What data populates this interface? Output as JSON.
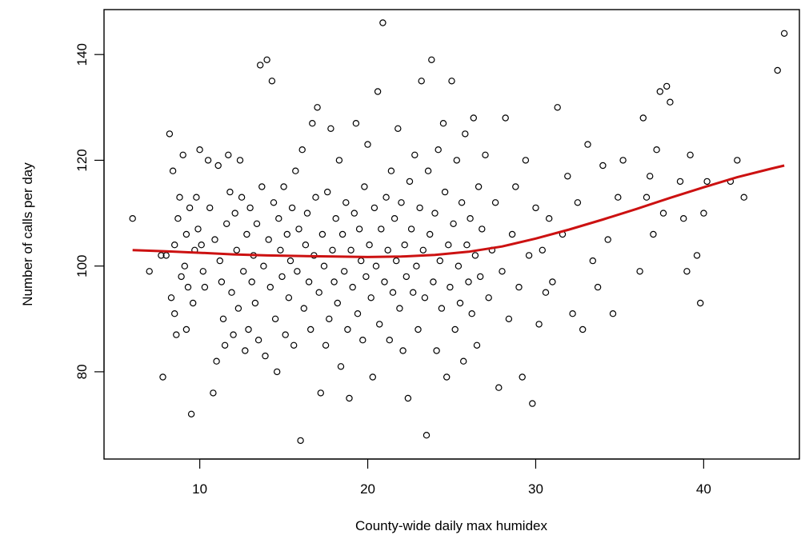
{
  "chart_data": {
    "type": "scatter",
    "title": "",
    "xlabel": "County-wide daily max humidex",
    "ylabel": "Number of calls per day",
    "xlim": [
      4.3,
      45.7
    ],
    "ylim": [
      63.5,
      148.5
    ],
    "xticks": [
      10,
      20,
      30,
      40
    ],
    "yticks": [
      80,
      100,
      120,
      140
    ],
    "xtick_labels": [
      "10",
      "20",
      "30",
      "40"
    ],
    "ytick_labels": [
      "80",
      "100",
      "120",
      "140"
    ],
    "grid": false,
    "legend": "none",
    "point_color": "#000000",
    "smooth_color": "#cc1111",
    "smooth_curve": [
      [
        6.0,
        103.0
      ],
      [
        8.0,
        102.8
      ],
      [
        10.0,
        102.5
      ],
      [
        12.0,
        102.2
      ],
      [
        14.0,
        102.0
      ],
      [
        16.0,
        101.9
      ],
      [
        18.0,
        101.8
      ],
      [
        20.0,
        101.7
      ],
      [
        22.0,
        101.8
      ],
      [
        24.0,
        102.1
      ],
      [
        26.0,
        102.7
      ],
      [
        28.0,
        103.7
      ],
      [
        30.0,
        105.2
      ],
      [
        32.0,
        106.9
      ],
      [
        34.0,
        108.8
      ],
      [
        36.0,
        110.8
      ],
      [
        38.0,
        112.9
      ],
      [
        40.0,
        114.9
      ],
      [
        42.0,
        116.8
      ],
      [
        44.0,
        118.4
      ],
      [
        44.8,
        119.0
      ]
    ],
    "points": [
      [
        6.0,
        109
      ],
      [
        7.0,
        99
      ],
      [
        7.7,
        102
      ],
      [
        7.8,
        79
      ],
      [
        8.0,
        102
      ],
      [
        8.2,
        125
      ],
      [
        8.3,
        94
      ],
      [
        8.4,
        118
      ],
      [
        8.5,
        104
      ],
      [
        8.5,
        91
      ],
      [
        8.6,
        87
      ],
      [
        8.7,
        109
      ],
      [
        8.8,
        113
      ],
      [
        8.9,
        98
      ],
      [
        9.0,
        121
      ],
      [
        9.1,
        100
      ],
      [
        9.2,
        106
      ],
      [
        9.2,
        88
      ],
      [
        9.3,
        96
      ],
      [
        9.4,
        111
      ],
      [
        9.5,
        72
      ],
      [
        9.6,
        93
      ],
      [
        9.7,
        103
      ],
      [
        9.8,
        113
      ],
      [
        9.9,
        107
      ],
      [
        10.0,
        122
      ],
      [
        10.1,
        104
      ],
      [
        10.2,
        99
      ],
      [
        10.3,
        96
      ],
      [
        10.5,
        120
      ],
      [
        10.6,
        111
      ],
      [
        10.8,
        76
      ],
      [
        10.9,
        105
      ],
      [
        11.0,
        82
      ],
      [
        11.1,
        119
      ],
      [
        11.2,
        101
      ],
      [
        11.3,
        97
      ],
      [
        11.4,
        90
      ],
      [
        11.5,
        85
      ],
      [
        11.6,
        108
      ],
      [
        11.7,
        121
      ],
      [
        11.8,
        114
      ],
      [
        11.9,
        95
      ],
      [
        12.0,
        87
      ],
      [
        12.1,
        110
      ],
      [
        12.2,
        103
      ],
      [
        12.3,
        92
      ],
      [
        12.4,
        120
      ],
      [
        12.5,
        113
      ],
      [
        12.6,
        99
      ],
      [
        12.7,
        84
      ],
      [
        12.8,
        106
      ],
      [
        12.9,
        88
      ],
      [
        13.0,
        111
      ],
      [
        13.1,
        97
      ],
      [
        13.2,
        102
      ],
      [
        13.3,
        93
      ],
      [
        13.4,
        108
      ],
      [
        13.5,
        86
      ],
      [
        13.6,
        138
      ],
      [
        13.7,
        115
      ],
      [
        13.8,
        100
      ],
      [
        13.9,
        83
      ],
      [
        14.0,
        139
      ],
      [
        14.1,
        105
      ],
      [
        14.2,
        96
      ],
      [
        14.3,
        135
      ],
      [
        14.4,
        112
      ],
      [
        14.5,
        90
      ],
      [
        14.6,
        80
      ],
      [
        14.7,
        109
      ],
      [
        14.8,
        103
      ],
      [
        14.9,
        98
      ],
      [
        15.0,
        115
      ],
      [
        15.1,
        87
      ],
      [
        15.2,
        106
      ],
      [
        15.3,
        94
      ],
      [
        15.4,
        101
      ],
      [
        15.5,
        111
      ],
      [
        15.6,
        85
      ],
      [
        15.7,
        118
      ],
      [
        15.8,
        99
      ],
      [
        15.9,
        107
      ],
      [
        16.0,
        67
      ],
      [
        16.1,
        122
      ],
      [
        16.2,
        92
      ],
      [
        16.3,
        104
      ],
      [
        16.4,
        110
      ],
      [
        16.5,
        97
      ],
      [
        16.6,
        88
      ],
      [
        16.7,
        127
      ],
      [
        16.8,
        102
      ],
      [
        16.9,
        113
      ],
      [
        17.0,
        130
      ],
      [
        17.1,
        95
      ],
      [
        17.2,
        76
      ],
      [
        17.3,
        106
      ],
      [
        17.4,
        100
      ],
      [
        17.5,
        85
      ],
      [
        17.6,
        114
      ],
      [
        17.7,
        90
      ],
      [
        17.8,
        126
      ],
      [
        17.9,
        103
      ],
      [
        18.0,
        97
      ],
      [
        18.1,
        109
      ],
      [
        18.2,
        93
      ],
      [
        18.3,
        120
      ],
      [
        18.4,
        81
      ],
      [
        18.5,
        106
      ],
      [
        18.6,
        99
      ],
      [
        18.7,
        112
      ],
      [
        18.8,
        88
      ],
      [
        18.9,
        75
      ],
      [
        19.0,
        103
      ],
      [
        19.1,
        96
      ],
      [
        19.2,
        110
      ],
      [
        19.3,
        127
      ],
      [
        19.4,
        91
      ],
      [
        19.5,
        107
      ],
      [
        19.6,
        101
      ],
      [
        19.7,
        86
      ],
      [
        19.8,
        115
      ],
      [
        19.9,
        98
      ],
      [
        20.0,
        123
      ],
      [
        20.1,
        104
      ],
      [
        20.2,
        94
      ],
      [
        20.3,
        79
      ],
      [
        20.4,
        111
      ],
      [
        20.5,
        100
      ],
      [
        20.6,
        133
      ],
      [
        20.7,
        89
      ],
      [
        20.8,
        107
      ],
      [
        20.9,
        146
      ],
      [
        21.0,
        97
      ],
      [
        21.1,
        113
      ],
      [
        21.2,
        103
      ],
      [
        21.3,
        86
      ],
      [
        21.4,
        118
      ],
      [
        21.5,
        95
      ],
      [
        21.6,
        109
      ],
      [
        21.7,
        101
      ],
      [
        21.8,
        126
      ],
      [
        21.9,
        92
      ],
      [
        22.0,
        112
      ],
      [
        22.1,
        84
      ],
      [
        22.2,
        104
      ],
      [
        22.3,
        98
      ],
      [
        22.4,
        75
      ],
      [
        22.5,
        116
      ],
      [
        22.6,
        107
      ],
      [
        22.7,
        95
      ],
      [
        22.8,
        121
      ],
      [
        22.9,
        100
      ],
      [
        23.0,
        88
      ],
      [
        23.1,
        111
      ],
      [
        23.2,
        135
      ],
      [
        23.3,
        103
      ],
      [
        23.4,
        94
      ],
      [
        23.5,
        68
      ],
      [
        23.6,
        118
      ],
      [
        23.7,
        106
      ],
      [
        23.8,
        139
      ],
      [
        23.9,
        97
      ],
      [
        24.0,
        110
      ],
      [
        24.1,
        84
      ],
      [
        24.2,
        122
      ],
      [
        24.3,
        101
      ],
      [
        24.4,
        92
      ],
      [
        24.5,
        127
      ],
      [
        24.6,
        114
      ],
      [
        24.7,
        79
      ],
      [
        24.8,
        104
      ],
      [
        24.9,
        96
      ],
      [
        25.0,
        135
      ],
      [
        25.1,
        108
      ],
      [
        25.2,
        88
      ],
      [
        25.3,
        120
      ],
      [
        25.4,
        100
      ],
      [
        25.5,
        93
      ],
      [
        25.6,
        112
      ],
      [
        25.7,
        82
      ],
      [
        25.8,
        125
      ],
      [
        25.9,
        104
      ],
      [
        26.0,
        97
      ],
      [
        26.1,
        109
      ],
      [
        26.2,
        91
      ],
      [
        26.3,
        128
      ],
      [
        26.4,
        102
      ],
      [
        26.5,
        85
      ],
      [
        26.6,
        115
      ],
      [
        26.7,
        98
      ],
      [
        26.8,
        107
      ],
      [
        27.0,
        121
      ],
      [
        27.2,
        94
      ],
      [
        27.4,
        103
      ],
      [
        27.6,
        112
      ],
      [
        27.8,
        77
      ],
      [
        28.0,
        99
      ],
      [
        28.2,
        128
      ],
      [
        28.4,
        90
      ],
      [
        28.6,
        106
      ],
      [
        28.8,
        115
      ],
      [
        29.0,
        96
      ],
      [
        29.2,
        79
      ],
      [
        29.4,
        120
      ],
      [
        29.6,
        102
      ],
      [
        29.8,
        74
      ],
      [
        30.0,
        111
      ],
      [
        30.2,
        89
      ],
      [
        30.4,
        103
      ],
      [
        30.6,
        95
      ],
      [
        30.8,
        109
      ],
      [
        31.0,
        97
      ],
      [
        31.3,
        130
      ],
      [
        31.6,
        106
      ],
      [
        31.9,
        117
      ],
      [
        32.2,
        91
      ],
      [
        32.5,
        112
      ],
      [
        32.8,
        88
      ],
      [
        33.1,
        123
      ],
      [
        33.4,
        101
      ],
      [
        33.7,
        96
      ],
      [
        34.0,
        119
      ],
      [
        34.3,
        105
      ],
      [
        34.6,
        91
      ],
      [
        34.9,
        113
      ],
      [
        35.2,
        120
      ],
      [
        36.2,
        99
      ],
      [
        36.4,
        128
      ],
      [
        36.6,
        113
      ],
      [
        36.8,
        117
      ],
      [
        37.0,
        106
      ],
      [
        37.2,
        122
      ],
      [
        37.4,
        133
      ],
      [
        37.6,
        110
      ],
      [
        37.8,
        134
      ],
      [
        38.0,
        131
      ],
      [
        38.6,
        116
      ],
      [
        38.8,
        109
      ],
      [
        39.0,
        99
      ],
      [
        39.2,
        121
      ],
      [
        39.6,
        102
      ],
      [
        39.8,
        93
      ],
      [
        40.0,
        110
      ],
      [
        40.2,
        116
      ],
      [
        41.6,
        116
      ],
      [
        42.0,
        120
      ],
      [
        42.4,
        113
      ],
      [
        44.4,
        137
      ],
      [
        44.8,
        144
      ]
    ]
  }
}
